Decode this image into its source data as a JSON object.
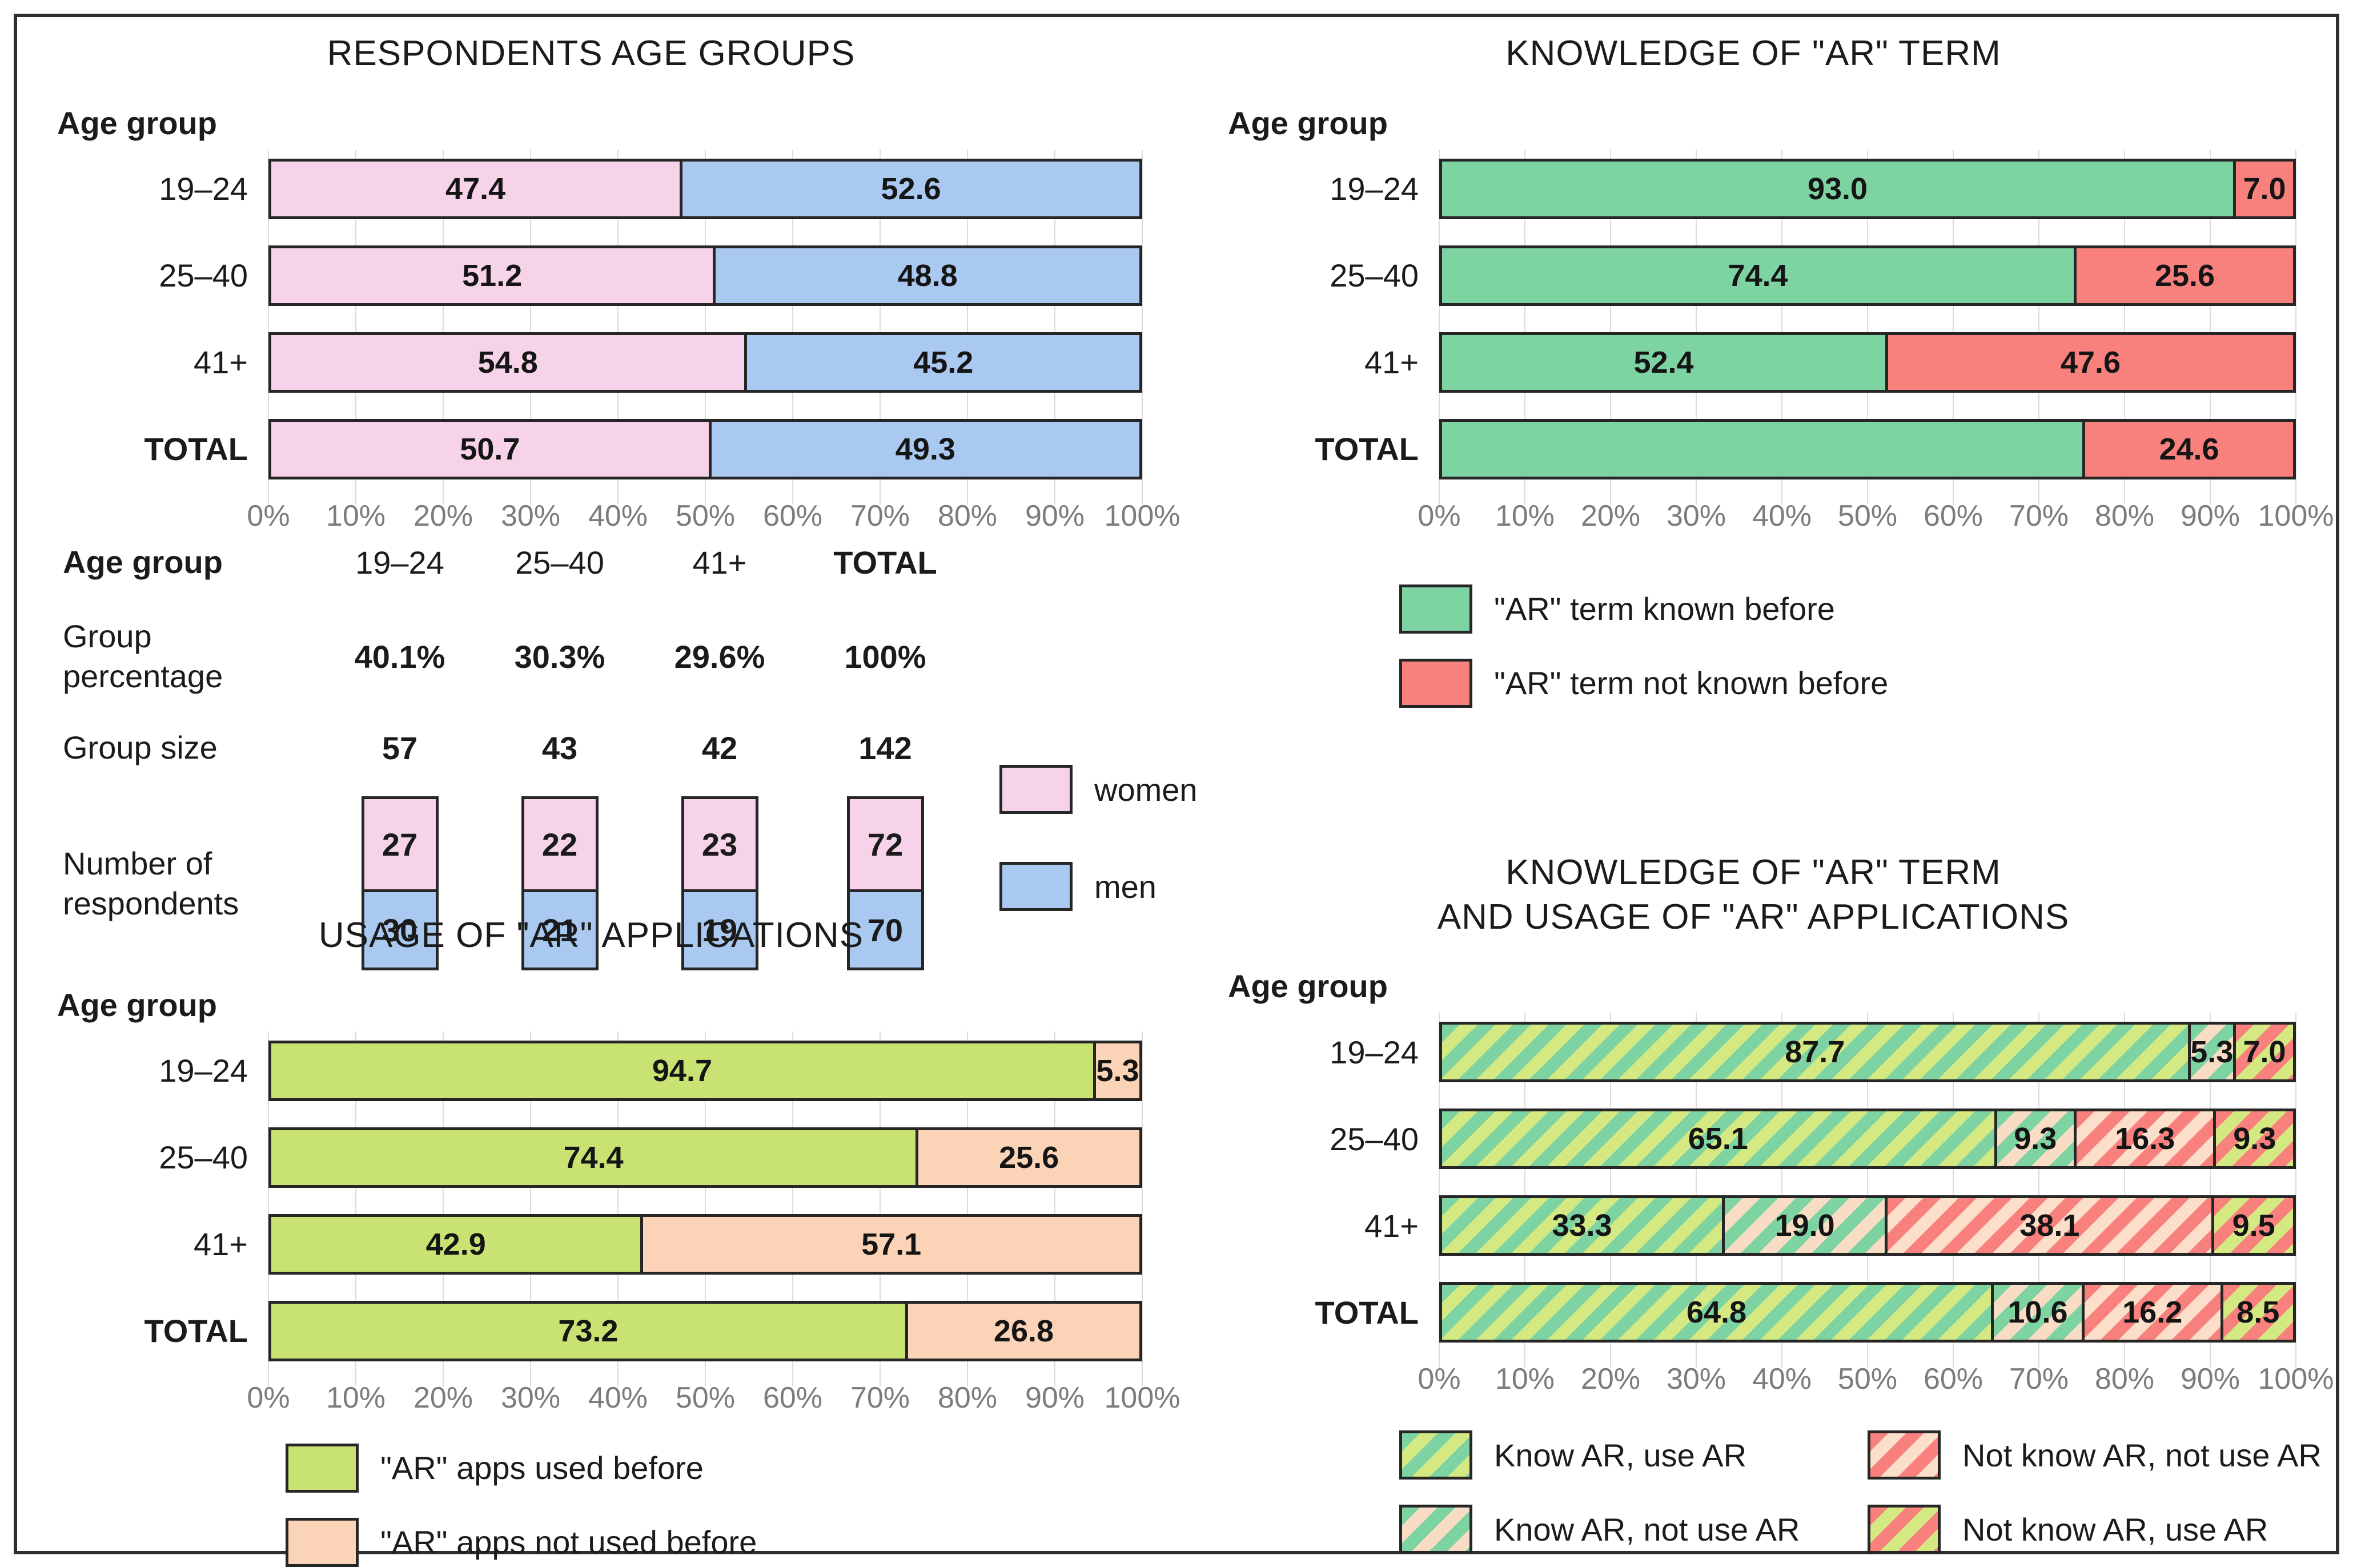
{
  "styles": {
    "women": {
      "fill": "#f6d3e8",
      "stripe": null
    },
    "men": {
      "fill": "#aac9f1",
      "stripe": null
    },
    "green": {
      "fill": "#7ed3a2",
      "stripe": null
    },
    "red": {
      "fill": "#f8817e",
      "stripe": null
    },
    "yellowgreen": {
      "fill": "#c9e373",
      "stripe": null
    },
    "peach": {
      "fill": "#fbd3b6",
      "stripe": null
    },
    "know-use": {
      "fill": "#7ed3a2",
      "stripe": "#d5e983"
    },
    "know-notuse": {
      "fill": "#7ed3a2",
      "stripe": "#f8dcc4"
    },
    "notknow-notuse": {
      "fill": "#f8817e",
      "stripe": "#fbdfca"
    },
    "notknow-use": {
      "fill": "#f8817e",
      "stripe": "#d5e983"
    }
  },
  "chart_data": [
    {
      "id": "respondents-age-groups",
      "type": "bar",
      "orientation": "horizontal-stacked",
      "title": "RESPONDENTS AGE GROUPS",
      "ylabel": "Age group",
      "xlim": [
        0,
        100
      ],
      "grid": true,
      "x_ticks": [
        "0%",
        "10%",
        "20%",
        "30%",
        "40%",
        "50%",
        "60%",
        "70%",
        "80%",
        "90%",
        "100%"
      ],
      "rows": [
        {
          "label": "19–24",
          "bold": false,
          "segments": [
            {
              "style": "women",
              "value": 47.4,
              "text": "47.4"
            },
            {
              "style": "men",
              "value": 52.6,
              "text": "52.6"
            }
          ]
        },
        {
          "label": "25–40",
          "bold": false,
          "segments": [
            {
              "style": "women",
              "value": 51.2,
              "text": "51.2"
            },
            {
              "style": "men",
              "value": 48.8,
              "text": "48.8"
            }
          ]
        },
        {
          "label": "41+",
          "bold": false,
          "segments": [
            {
              "style": "women",
              "value": 54.8,
              "text": "54.8"
            },
            {
              "style": "men",
              "value": 45.2,
              "text": "45.2"
            }
          ]
        },
        {
          "label": "TOTAL",
          "bold": true,
          "segments": [
            {
              "style": "women",
              "value": 50.7,
              "text": "50.7"
            },
            {
              "style": "men",
              "value": 49.3,
              "text": "49.3"
            }
          ]
        }
      ],
      "legend": []
    },
    {
      "id": "knowledge-of-ar-term",
      "type": "bar",
      "orientation": "horizontal-stacked",
      "title": "KNOWLEDGE OF \"AR\" TERM",
      "ylabel": "Age group",
      "xlim": [
        0,
        100
      ],
      "grid": true,
      "x_ticks": [
        "0%",
        "10%",
        "20%",
        "30%",
        "40%",
        "50%",
        "60%",
        "70%",
        "80%",
        "90%",
        "100%"
      ],
      "rows": [
        {
          "label": "19–24",
          "bold": false,
          "segments": [
            {
              "style": "green",
              "value": 93.0,
              "text": "93.0"
            },
            {
              "style": "red",
              "value": 7.0,
              "text": "7.0"
            }
          ]
        },
        {
          "label": "25–40",
          "bold": false,
          "segments": [
            {
              "style": "green",
              "value": 74.4,
              "text": "74.4"
            },
            {
              "style": "red",
              "value": 25.6,
              "text": "25.6"
            }
          ]
        },
        {
          "label": "41+",
          "bold": false,
          "segments": [
            {
              "style": "green",
              "value": 52.4,
              "text": "52.4"
            },
            {
              "style": "red",
              "value": 47.6,
              "text": "47.6"
            }
          ]
        },
        {
          "label": "TOTAL",
          "bold": true,
          "segments": [
            {
              "style": "green",
              "value": 75.4,
              "text": ""
            },
            {
              "style": "red",
              "value": 24.6,
              "text": "24.6"
            }
          ]
        }
      ],
      "legend": [
        {
          "style": "green",
          "label": "\"AR\" term known before"
        },
        {
          "style": "red",
          "label": "\"AR\" term not known before"
        }
      ]
    },
    {
      "id": "usage-of-ar-applications",
      "type": "bar",
      "orientation": "horizontal-stacked",
      "title": "USAGE OF \"AR\" APPLICATIONS",
      "ylabel": "Age group",
      "xlim": [
        0,
        100
      ],
      "grid": true,
      "x_ticks": [
        "0%",
        "10%",
        "20%",
        "30%",
        "40%",
        "50%",
        "60%",
        "70%",
        "80%",
        "90%",
        "100%"
      ],
      "rows": [
        {
          "label": "19–24",
          "bold": false,
          "segments": [
            {
              "style": "yellowgreen",
              "value": 94.7,
              "text": "94.7"
            },
            {
              "style": "peach",
              "value": 5.3,
              "text": "5.3"
            }
          ]
        },
        {
          "label": "25–40",
          "bold": false,
          "segments": [
            {
              "style": "yellowgreen",
              "value": 74.4,
              "text": "74.4"
            },
            {
              "style": "peach",
              "value": 25.6,
              "text": "25.6"
            }
          ]
        },
        {
          "label": "41+",
          "bold": false,
          "segments": [
            {
              "style": "yellowgreen",
              "value": 42.9,
              "text": "42.9"
            },
            {
              "style": "peach",
              "value": 57.1,
              "text": "57.1"
            }
          ]
        },
        {
          "label": "TOTAL",
          "bold": true,
          "segments": [
            {
              "style": "yellowgreen",
              "value": 73.2,
              "text": "73.2"
            },
            {
              "style": "peach",
              "value": 26.8,
              "text": "26.8"
            }
          ]
        }
      ],
      "legend": [
        {
          "style": "yellowgreen",
          "label": "\"AR\" apps used before"
        },
        {
          "style": "peach",
          "label": "\"AR\" apps not used before"
        }
      ]
    },
    {
      "id": "knowledge-and-usage",
      "type": "bar",
      "orientation": "horizontal-stacked",
      "title": "KNOWLEDGE OF \"AR\" TERM\nAND USAGE OF \"AR\" APPLICATIONS",
      "ylabel": "Age group",
      "xlim": [
        0,
        100
      ],
      "grid": true,
      "x_ticks": [
        "0%",
        "10%",
        "20%",
        "30%",
        "40%",
        "50%",
        "60%",
        "70%",
        "80%",
        "90%",
        "100%"
      ],
      "rows": [
        {
          "label": "19–24",
          "bold": false,
          "segments": [
            {
              "style": "know-use",
              "value": 87.7,
              "text": "87.7"
            },
            {
              "style": "know-notuse",
              "value": 5.3,
              "text": "5.3"
            },
            {
              "style": "notknow-use",
              "value": 7.0,
              "text": "7.0"
            }
          ]
        },
        {
          "label": "25–40",
          "bold": false,
          "segments": [
            {
              "style": "know-use",
              "value": 65.1,
              "text": "65.1"
            },
            {
              "style": "know-notuse",
              "value": 9.3,
              "text": "9.3"
            },
            {
              "style": "notknow-notuse",
              "value": 16.3,
              "text": "16.3"
            },
            {
              "style": "notknow-use",
              "value": 9.3,
              "text": "9.3"
            }
          ]
        },
        {
          "label": "41+",
          "bold": false,
          "segments": [
            {
              "style": "know-use",
              "value": 33.3,
              "text": "33.3"
            },
            {
              "style": "know-notuse",
              "value": 19.0,
              "text": "19.0"
            },
            {
              "style": "notknow-notuse",
              "value": 38.1,
              "text": "38.1"
            },
            {
              "style": "notknow-use",
              "value": 9.5,
              "text": "9.5"
            }
          ]
        },
        {
          "label": "TOTAL",
          "bold": true,
          "segments": [
            {
              "style": "know-use",
              "value": 64.8,
              "text": "64.8"
            },
            {
              "style": "know-notuse",
              "value": 10.6,
              "text": "10.6"
            },
            {
              "style": "notknow-notuse",
              "value": 16.2,
              "text": "16.2"
            },
            {
              "style": "notknow-use",
              "value": 8.5,
              "text": "8.5"
            }
          ]
        }
      ],
      "legend": [
        {
          "style": "know-use",
          "label": "Know AR, use AR"
        },
        {
          "style": "notknow-notuse",
          "label": "Not know AR, not use AR"
        },
        {
          "style": "know-notuse",
          "label": "Know AR, not use AR"
        },
        {
          "style": "notknow-use",
          "label": "Not know AR, use AR"
        }
      ]
    }
  ],
  "table": {
    "row_headers": [
      "Age group",
      "Group percentage",
      "Group size",
      "Number of respondents"
    ],
    "columns": [
      "19–24",
      "25–40",
      "41+",
      "TOTAL"
    ],
    "group_percentage": [
      "40.1%",
      "30.3%",
      "29.6%",
      "100%"
    ],
    "group_size": [
      "57",
      "43",
      "42",
      "142"
    ],
    "women_counts": [
      "27",
      "22",
      "23",
      "72"
    ],
    "men_counts": [
      "30",
      "21",
      "19",
      "70"
    ],
    "legend": [
      {
        "style": "women",
        "label": "women"
      },
      {
        "style": "men",
        "label": "men"
      }
    ]
  }
}
